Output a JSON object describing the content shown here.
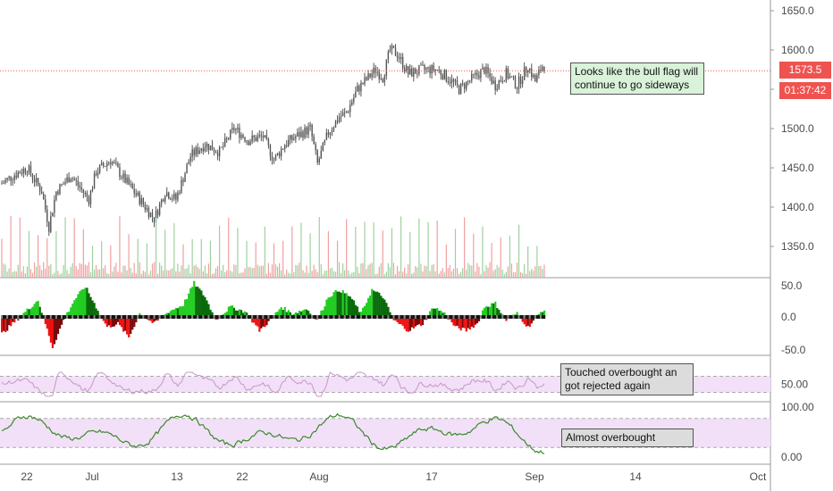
{
  "chart_data": [
    {
      "type": "candlestick",
      "panel": "price",
      "y_ticks": [
        "1650.0",
        "1600.0",
        "1550.0",
        "1500.0",
        "1450.0",
        "1400.0",
        "1350.0"
      ],
      "ylim": [
        1310,
        1660
      ],
      "current_price": "1573.5",
      "countdown": "01:37:42",
      "anchors": [
        [
          0,
          1430
        ],
        [
          6,
          1440
        ],
        [
          14,
          1450
        ],
        [
          22,
          1420
        ],
        [
          26,
          1375
        ],
        [
          30,
          1420
        ],
        [
          38,
          1440
        ],
        [
          48,
          1410
        ],
        [
          52,
          1445
        ],
        [
          60,
          1460
        ],
        [
          66,
          1440
        ],
        [
          76,
          1410
        ],
        [
          84,
          1385
        ],
        [
          90,
          1420
        ],
        [
          96,
          1410
        ],
        [
          104,
          1465
        ],
        [
          112,
          1480
        ],
        [
          120,
          1470
        ],
        [
          128,
          1500
        ],
        [
          136,
          1485
        ],
        [
          144,
          1490
        ],
        [
          150,
          1460
        ],
        [
          156,
          1480
        ],
        [
          162,
          1490
        ],
        [
          170,
          1500
        ],
        [
          174,
          1455
        ],
        [
          180,
          1495
        ],
        [
          186,
          1515
        ],
        [
          190,
          1520
        ],
        [
          196,
          1550
        ],
        [
          200,
          1560
        ],
        [
          206,
          1575
        ],
        [
          210,
          1565
        ],
        [
          214,
          1600
        ],
        [
          218,
          1595
        ],
        [
          224,
          1570
        ],
        [
          232,
          1575
        ],
        [
          240,
          1575
        ],
        [
          248,
          1560
        ],
        [
          252,
          1550
        ],
        [
          260,
          1565
        ],
        [
          266,
          1575
        ],
        [
          272,
          1555
        ],
        [
          278,
          1570
        ],
        [
          284,
          1555
        ],
        [
          290,
          1580
        ],
        [
          294,
          1560
        ],
        [
          298,
          1580
        ]
      ],
      "volume_ylim": [
        0,
        100
      ]
    },
    {
      "type": "histogram",
      "panel": "momentum",
      "y_ticks": [
        "50.0",
        "0.0",
        "-50.0"
      ],
      "ylim": [
        -60,
        60
      ],
      "anchors": [
        [
          0,
          -25
        ],
        [
          14,
          10
        ],
        [
          20,
          25
        ],
        [
          24,
          -10
        ],
        [
          28,
          -45
        ],
        [
          34,
          -5
        ],
        [
          40,
          25
        ],
        [
          46,
          45
        ],
        [
          52,
          15
        ],
        [
          58,
          -15
        ],
        [
          64,
          -10
        ],
        [
          70,
          -30
        ],
        [
          76,
          5
        ],
        [
          84,
          -10
        ],
        [
          92,
          8
        ],
        [
          100,
          18
        ],
        [
          106,
          50
        ],
        [
          112,
          30
        ],
        [
          118,
          -5
        ],
        [
          126,
          15
        ],
        [
          134,
          8
        ],
        [
          142,
          -20
        ],
        [
          148,
          -5
        ],
        [
          154,
          15
        ],
        [
          160,
          5
        ],
        [
          168,
          12
        ],
        [
          174,
          -5
        ],
        [
          180,
          30
        ],
        [
          186,
          40
        ],
        [
          192,
          30
        ],
        [
          198,
          5
        ],
        [
          204,
          40
        ],
        [
          210,
          30
        ],
        [
          216,
          -5
        ],
        [
          224,
          -20
        ],
        [
          232,
          -10
        ],
        [
          238,
          15
        ],
        [
          244,
          5
        ],
        [
          250,
          -15
        ],
        [
          256,
          -20
        ],
        [
          262,
          -10
        ],
        [
          266,
          15
        ],
        [
          272,
          20
        ],
        [
          278,
          -5
        ],
        [
          284,
          5
        ],
        [
          290,
          -15
        ],
        [
          298,
          10
        ]
      ]
    },
    {
      "type": "line",
      "panel": "indicator-1",
      "y_ticks": [
        "50.00"
      ],
      "ylim": [
        0,
        100
      ],
      "band": [
        30,
        70
      ],
      "color": "#c797c7"
    },
    {
      "type": "line",
      "panel": "indicator-2",
      "y_ticks": [
        "100.00",
        "0.00"
      ],
      "ylim": [
        0,
        100
      ],
      "band": [
        20,
        80
      ],
      "color": "#3a8a2a"
    }
  ],
  "x_axis": {
    "labels": [
      "22",
      "Jul",
      "13",
      "22",
      "Aug",
      "17",
      "Sep",
      "14",
      "Oct"
    ]
  },
  "annotations": {
    "price_note": "Looks like the bull flag will continue to go sideways",
    "rsi_note": "Touched overbought an got rejected again",
    "stoch_note": "Almost overbought"
  },
  "colors": {
    "candle": "#555555",
    "vol_up": "#9fd09f",
    "vol_down": "#f0a0a0",
    "hist_up_strong": "#22cc22",
    "hist_up_weak": "#0a6a0a",
    "hist_down_strong": "#ee1111",
    "hist_down_weak": "#7a0a0a",
    "band_fill": "#f2e0f8",
    "price_line": "#ef5350"
  }
}
